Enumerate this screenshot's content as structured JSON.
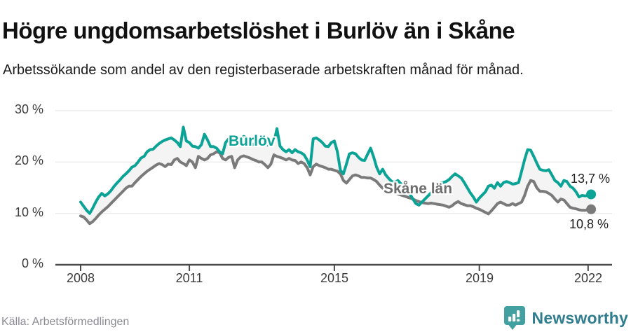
{
  "header": {
    "title": "Högre ungdomsarbetslöshet i Burlöv än i Skåne",
    "subtitle": "Arbetssökande som andel av den registerbaserade arbetskraften månad för månad."
  },
  "chart_data": {
    "type": "line",
    "unit": "%",
    "frequency": "monthly",
    "x_start": "2008-01",
    "x_end": "2022-02",
    "ylim": [
      0,
      30
    ],
    "grid": true,
    "y_ticks": [
      {
        "value": 0,
        "label": "0 %"
      },
      {
        "value": 10,
        "label": "10 %"
      },
      {
        "value": 20,
        "label": "20 %"
      },
      {
        "value": 30,
        "label": "30 %"
      }
    ],
    "x_ticks": [
      {
        "year": 2008,
        "label": "2008"
      },
      {
        "year": 2011,
        "label": "2011"
      },
      {
        "year": 2015,
        "label": "2015"
      },
      {
        "year": 2019,
        "label": "2019"
      },
      {
        "year": 2022,
        "label": "2022"
      }
    ],
    "band_fill": "#f4f4f4",
    "series": [
      {
        "name": "Burlöv",
        "color": "#0aa396",
        "end_label": "13,7 %",
        "end_value": 13.7,
        "values": [
          12.2,
          11.4,
          10.6,
          10.0,
          11.0,
          12.2,
          13.2,
          13.9,
          13.4,
          13.8,
          14.4,
          15.2,
          15.9,
          16.5,
          17.2,
          17.7,
          18.3,
          19.0,
          19.3,
          20.0,
          20.8,
          21.1,
          22.0,
          22.4,
          22.5,
          23.1,
          23.6,
          24.0,
          24.3,
          24.5,
          24.7,
          24.3,
          23.8,
          23.0,
          26.8,
          24.1,
          23.8,
          23.1,
          23.0,
          22.7,
          23.4,
          25.4,
          24.3,
          23.0,
          23.0,
          22.7,
          22.0,
          21.6,
          23.8,
          24.5,
          24.7,
          25.0,
          24.7,
          24.5,
          25.0,
          24.7,
          23.6,
          23.4,
          23.6,
          23.4,
          23.6,
          23.4,
          23.3,
          23.5,
          23.8,
          26.5,
          23.1,
          22.4,
          22.0,
          22.4,
          21.8,
          22.4,
          22.0,
          21.8,
          21.4,
          20.4,
          19.1,
          24.5,
          24.7,
          24.3,
          23.8,
          23.1,
          23.0,
          23.8,
          24.1,
          22.0,
          18.4,
          17.7,
          19.6,
          21.6,
          21.8,
          21.6,
          20.9,
          20.4,
          20.3,
          21.5,
          22.7,
          21.0,
          19.0,
          17.7,
          18.6,
          17.5,
          16.8,
          16.2,
          16.0,
          16.4,
          15.8,
          15.2,
          14.5,
          13.8,
          12.8,
          11.9,
          11.6,
          12.2,
          12.8,
          13.4,
          14.0,
          14.6,
          15.2,
          15.9,
          16.0,
          16.2,
          16.6,
          17.2,
          17.7,
          17.3,
          16.9,
          16.0,
          15.0,
          14.0,
          13.2,
          12.2,
          13.0,
          13.6,
          14.2,
          15.3,
          15.5,
          14.9,
          16.0,
          15.3,
          16.0,
          16.2,
          16.0,
          15.7,
          15.8,
          16.0,
          18.2,
          20.5,
          22.4,
          22.3,
          21.1,
          19.8,
          18.6,
          18.4,
          18.3,
          18.5,
          17.5,
          16.4,
          16.0,
          15.3,
          16.4,
          16.2,
          15.3,
          14.9,
          14.2,
          13.2,
          13.5,
          13.4,
          13.5,
          13.7
        ]
      },
      {
        "name": "Skåne län",
        "color": "#7a7a7a",
        "end_label": "10,8 %",
        "end_value": 10.8,
        "values": [
          9.5,
          9.3,
          8.7,
          8.0,
          8.4,
          9.0,
          9.7,
          10.3,
          10.8,
          11.3,
          11.9,
          12.5,
          13.1,
          13.7,
          14.3,
          14.9,
          15.3,
          15.3,
          16.0,
          16.6,
          17.2,
          17.7,
          18.2,
          18.6,
          19.0,
          19.4,
          19.7,
          19.5,
          19.1,
          19.6,
          19.5,
          20.4,
          20.7,
          20.0,
          19.7,
          19.3,
          20.4,
          20.0,
          18.9,
          21.1,
          20.7,
          20.4,
          20.7,
          21.4,
          21.6,
          22.0,
          21.8,
          20.7,
          20.4,
          20.9,
          21.1,
          18.9,
          20.4,
          21.0,
          21.2,
          21.0,
          20.8,
          20.5,
          20.3,
          20.0,
          20.0,
          19.5,
          18.9,
          19.6,
          21.4,
          21.1,
          20.9,
          20.7,
          20.4,
          20.7,
          20.4,
          20.3,
          19.7,
          20.0,
          19.7,
          18.9,
          17.5,
          19.1,
          19.6,
          19.3,
          19.1,
          18.9,
          18.6,
          18.6,
          18.4,
          18.2,
          17.7,
          16.4,
          15.9,
          16.6,
          17.3,
          17.5,
          17.3,
          17.0,
          17.0,
          16.9,
          16.9,
          16.6,
          16.2,
          15.5,
          14.9,
          14.6,
          14.3,
          14.2,
          14.0,
          13.8,
          13.6,
          13.4,
          13.2,
          13.0,
          12.8,
          12.5,
          12.3,
          12.1,
          12.0,
          11.9,
          12.0,
          11.9,
          11.8,
          11.7,
          11.6,
          11.4,
          11.2,
          11.5,
          12.0,
          12.3,
          11.9,
          11.7,
          11.5,
          11.5,
          11.3,
          11.0,
          10.8,
          10.5,
          10.2,
          9.9,
          10.5,
          11.2,
          11.9,
          12.2,
          11.9,
          11.6,
          11.6,
          11.9,
          11.6,
          11.9,
          12.2,
          13.5,
          15.3,
          16.4,
          16.2,
          15.0,
          14.3,
          14.3,
          14.2,
          13.9,
          13.5,
          12.8,
          12.2,
          12.8,
          12.6,
          11.9,
          11.2,
          11.0,
          10.9,
          10.7,
          10.6,
          10.6,
          10.7,
          10.8
        ]
      }
    ]
  },
  "footer": {
    "source": "Källa: Arbetsförmedlingen",
    "logo_text": "Newsworthy"
  },
  "colors": {
    "accent_teal": "#0aa396",
    "line_gray": "#7a7a7a",
    "grid": "#e3e3e3",
    "axis": "#4a4a4a",
    "logo_badge": "#43a0a0",
    "logo_wordmark": "#2f7d8e"
  }
}
